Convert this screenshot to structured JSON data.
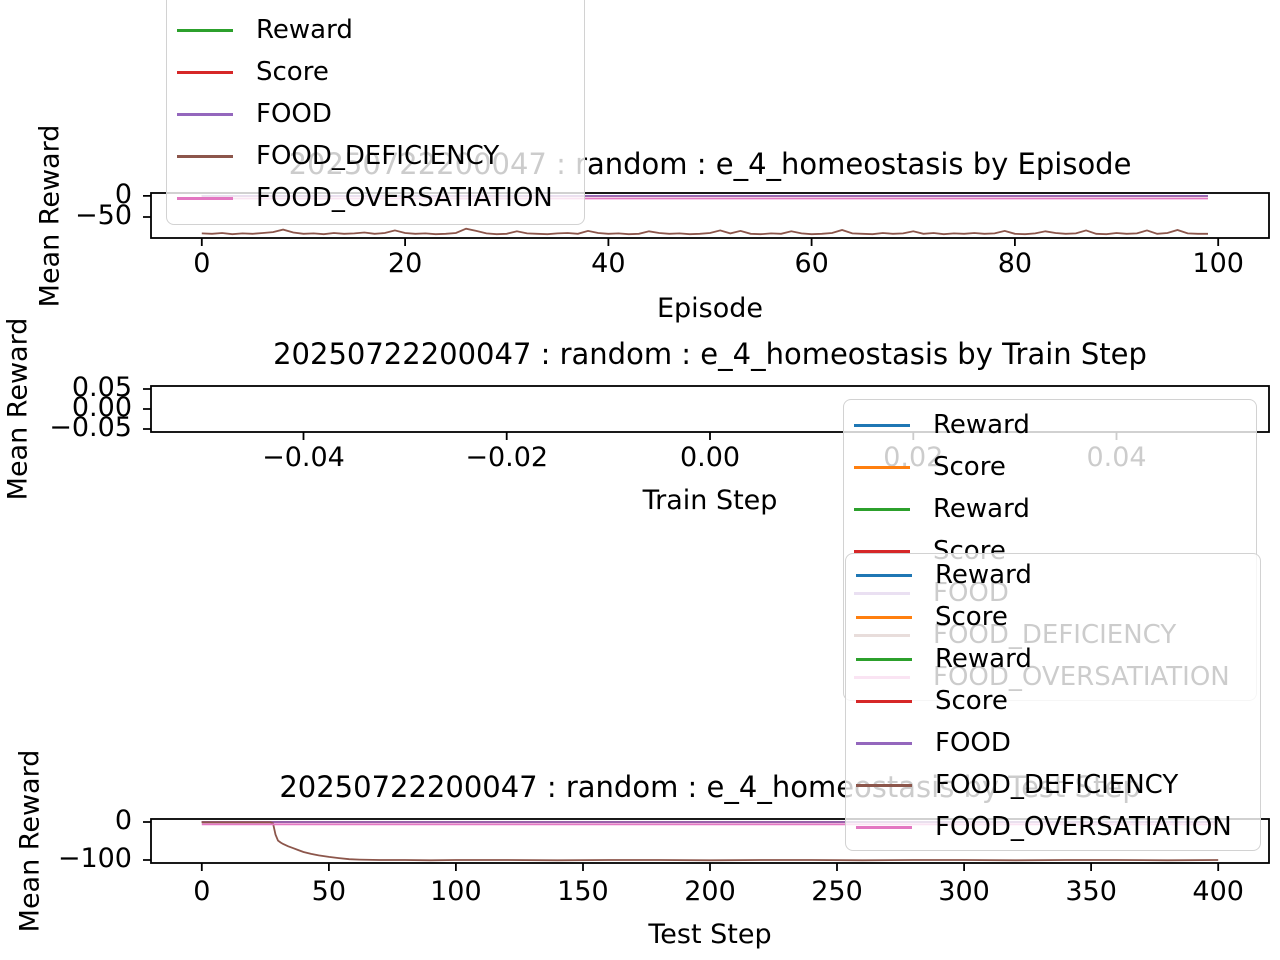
{
  "figure": {
    "background": "#ffffff"
  },
  "colors": {
    "blue": "#1f77b4",
    "orange": "#ff7f0e",
    "green": "#2ca02c",
    "red": "#d62728",
    "purple": "#9467bd",
    "brown": "#8c564b",
    "pink": "#e377c2",
    "spine": "#000000",
    "text": "#000000",
    "legend_border": "#d2d2d2"
  },
  "chart_data": [
    {
      "type": "line",
      "title": "20250722200047 : random : e_4_homeostasis by Episode",
      "xlabel": "Episode",
      "ylabel": "Mean Reward",
      "xlim": [
        -5,
        105
      ],
      "ylim": [
        -100,
        7
      ],
      "grid": false,
      "xticks": {
        "values": [
          0,
          20,
          40,
          60,
          80,
          100
        ],
        "labels": [
          "0",
          "20",
          "40",
          "60",
          "80",
          "100"
        ]
      },
      "yticks": {
        "values": [
          0,
          -50
        ],
        "labels": [
          "0",
          "−50"
        ]
      },
      "legend": {
        "position": "upper-left-clipped",
        "entries": [
          {
            "label": "Reward",
            "color": "green"
          },
          {
            "label": "Score",
            "color": "red"
          },
          {
            "label": "FOOD",
            "color": "purple"
          },
          {
            "label": "FOOD_DEFICIENCY",
            "color": "brown"
          },
          {
            "label": "FOOD_OVERSATIATION",
            "color": "pink"
          }
        ]
      },
      "series": [
        {
          "name": "Reward",
          "color": "green",
          "x": [
            0,
            99
          ],
          "y": [
            0,
            0
          ]
        },
        {
          "name": "Score",
          "color": "red",
          "x": [
            0,
            99
          ],
          "y": [
            0,
            0
          ]
        },
        {
          "name": "FOOD",
          "color": "purple",
          "x": [
            0,
            99
          ],
          "y": [
            0,
            0
          ]
        },
        {
          "name": "FOOD_DEFICIENCY",
          "color": "brown",
          "y": [
            -89,
            -90,
            -88,
            -91,
            -89,
            -90,
            -88,
            -86,
            -80,
            -87,
            -90,
            -89,
            -91,
            -88,
            -90,
            -89,
            -87,
            -90,
            -88,
            -82,
            -88,
            -90,
            -89,
            -91,
            -90,
            -88,
            -78,
            -83,
            -89,
            -91,
            -90,
            -84,
            -89,
            -90,
            -91,
            -89,
            -88,
            -90,
            -83,
            -88,
            -90,
            -89,
            -91,
            -90,
            -84,
            -88,
            -90,
            -89,
            -91,
            -90,
            -88,
            -82,
            -89,
            -83,
            -90,
            -91,
            -89,
            -90,
            -84,
            -89,
            -91,
            -90,
            -88,
            -81,
            -89,
            -90,
            -91,
            -88,
            -90,
            -89,
            -84,
            -90,
            -88,
            -91,
            -89,
            -90,
            -88,
            -90,
            -89,
            -83,
            -90,
            -91,
            -89,
            -84,
            -88,
            -90,
            -89,
            -82,
            -90,
            -91,
            -88,
            -90,
            -89,
            -82,
            -90,
            -88,
            -81,
            -89,
            -90,
            -90
          ]
        },
        {
          "name": "FOOD_OVERSATIATION",
          "color": "pink",
          "x": [
            0,
            99
          ],
          "y": [
            -6,
            -6
          ]
        }
      ]
    },
    {
      "type": "line",
      "title": "20250722200047 : random : e_4_homeostasis by Train Step",
      "xlabel": "Train Step",
      "ylabel": "Mean Reward",
      "xlim": [
        -0.055,
        0.055
      ],
      "ylim": [
        -0.0575,
        0.0575
      ],
      "grid": false,
      "xticks": {
        "values": [
          -0.04,
          -0.02,
          0,
          0.02,
          0.04
        ],
        "labels": [
          "−0.04",
          "−0.02",
          "0.00",
          "0.02",
          "0.04"
        ]
      },
      "yticks": {
        "values": [
          0.05,
          0,
          -0.05
        ],
        "labels": [
          "0.05",
          "0.00",
          "−0.05"
        ]
      },
      "legend": {
        "position": "right-overlapping",
        "entries": [
          {
            "label": "Reward",
            "color": "blue"
          },
          {
            "label": "Score",
            "color": "orange"
          },
          {
            "label": "Reward",
            "color": "green"
          },
          {
            "label": "Score",
            "color": "red"
          },
          {
            "label": "FOOD",
            "color": "purple"
          },
          {
            "label": "FOOD_DEFICIENCY",
            "color": "brown"
          },
          {
            "label": "FOOD_OVERSATIATION",
            "color": "pink"
          }
        ]
      },
      "series": []
    },
    {
      "type": "line",
      "title": "20250722200047 : random : e_4_homeostasis by Test Step",
      "xlabel": "Test Step",
      "ylabel": "Mean Reward",
      "xlim": [
        -20,
        420
      ],
      "ylim": [
        -108,
        8
      ],
      "grid": false,
      "xticks": {
        "values": [
          0,
          50,
          100,
          150,
          200,
          250,
          300,
          350,
          400
        ],
        "labels": [
          "0",
          "50",
          "100",
          "150",
          "200",
          "250",
          "300",
          "350",
          "400"
        ]
      },
      "yticks": {
        "values": [
          0,
          -100
        ],
        "labels": [
          "0",
          "−100"
        ]
      },
      "legend": {
        "position": "upper-right-overlapping",
        "entries": [
          {
            "label": "Reward",
            "color": "blue"
          },
          {
            "label": "Score",
            "color": "orange"
          },
          {
            "label": "Reward",
            "color": "green"
          },
          {
            "label": "Score",
            "color": "red"
          },
          {
            "label": "FOOD",
            "color": "purple"
          },
          {
            "label": "FOOD_DEFICIENCY",
            "color": "brown"
          },
          {
            "label": "FOOD_OVERSATIATION",
            "color": "pink"
          }
        ]
      },
      "series": [
        {
          "name": "Reward",
          "color": "blue",
          "x": [
            0,
            400
          ],
          "y": [
            0,
            0
          ]
        },
        {
          "name": "Score",
          "color": "orange",
          "x": [
            0,
            400
          ],
          "y": [
            0,
            0
          ]
        },
        {
          "name": "Reward",
          "color": "green",
          "x": [
            0,
            400
          ],
          "y": [
            0,
            0
          ]
        },
        {
          "name": "Score",
          "color": "red",
          "x": [
            0,
            400
          ],
          "y": [
            0,
            0
          ]
        },
        {
          "name": "FOOD",
          "color": "purple",
          "x": [
            0,
            400
          ],
          "y": [
            0,
            0
          ]
        },
        {
          "name": "FOOD_DEFICIENCY",
          "color": "brown",
          "x": [
            0,
            4,
            8,
            12,
            16,
            20,
            24,
            27,
            28,
            29,
            30,
            31,
            32,
            34,
            36,
            38,
            40,
            43,
            46,
            50,
            54,
            58,
            62,
            70,
            80,
            90,
            100,
            120,
            140,
            160,
            180,
            200,
            220,
            240,
            260,
            280,
            300,
            320,
            340,
            360,
            380,
            400
          ],
          "y": [
            -1,
            -1,
            -1,
            -1,
            -1,
            -1,
            -1,
            -1,
            -3,
            -33,
            -49,
            -54,
            -58,
            -64,
            -69,
            -74,
            -79,
            -84,
            -88,
            -92,
            -95,
            -98,
            -99,
            -100,
            -100,
            -101,
            -100,
            -100,
            -101,
            -100,
            -100,
            -101,
            -100,
            -100,
            -101,
            -100,
            -100,
            -101,
            -100,
            -100,
            -101,
            -100
          ]
        },
        {
          "name": "FOOD_OVERSATIATION",
          "color": "pink",
          "x": [
            0,
            400
          ],
          "y": [
            -6,
            -6
          ]
        }
      ]
    }
  ]
}
